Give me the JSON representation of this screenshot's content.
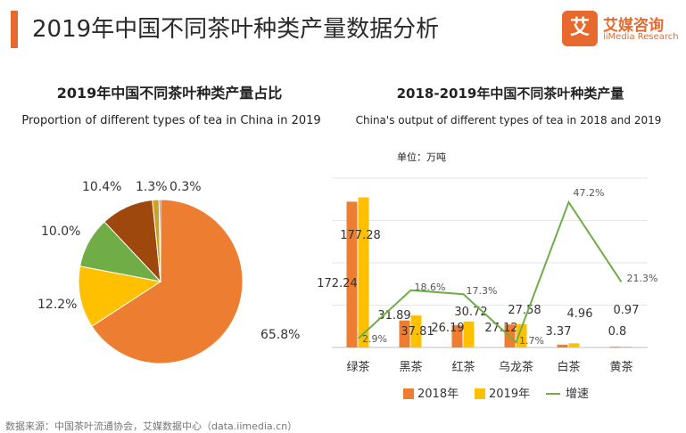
{
  "page_title": "2019年中国不同茶叶种类产量数据分析",
  "logo": {
    "mark": "艾",
    "name_cn": "艾媒咨询",
    "name_en": "iiMedia Research"
  },
  "source": "数据来源：中国茶叶流通协会，艾媒数据中心（data.iimedia.cn）",
  "colors": {
    "orange": "#ed7d31",
    "yellow": "#ffc000",
    "green": "#70ad47",
    "brown": "#9e480e",
    "tan": "#c9a227",
    "accent": "#e8692d"
  },
  "chart_data": [
    {
      "type": "pie",
      "title": "2019年中国不同茶叶种类产量占比",
      "subtitle": "Proportion of different types of tea in China in 2019",
      "slices": [
        {
          "label": "65.8%",
          "value": 65.8,
          "color": "#ed7d31"
        },
        {
          "label": "12.2%",
          "value": 12.2,
          "color": "#ffc000"
        },
        {
          "label": "10.0%",
          "value": 10.0,
          "color": "#70ad47"
        },
        {
          "label": "10.4%",
          "value": 10.4,
          "color": "#9e480e"
        },
        {
          "label": "1.3%",
          "value": 1.3,
          "color": "#c9a227"
        },
        {
          "label": "0.3%",
          "value": 0.3,
          "color": "#7f6000"
        }
      ]
    },
    {
      "type": "bar",
      "title": "2018-2019年中国不同茶叶种类产量",
      "subtitle": "China's output of different types of tea in 2018 and 2019",
      "unit": "单位：万吨",
      "categories": [
        "绿茶",
        "黑茶",
        "红茶",
        "乌龙茶",
        "白茶",
        "黄茶"
      ],
      "series": [
        {
          "name": "2018年",
          "values": [
            172.24,
            31.89,
            26.19,
            27.12,
            3.37,
            0.8
          ],
          "labels": [
            "172.24",
            "31.89",
            "26.19",
            "27.12",
            "3.37",
            "0.8"
          ],
          "color": "#ed7d31"
        },
        {
          "name": "2019年",
          "values": [
            177.28,
            37.81,
            30.72,
            27.58,
            4.96,
            0.97
          ],
          "labels": [
            "177.28",
            "37.81",
            "30.72",
            "27.58",
            "4.96",
            "0.97"
          ],
          "color": "#ffc000"
        }
      ],
      "growth": {
        "name": "增速",
        "values": [
          2.9,
          18.6,
          17.3,
          1.7,
          47.2,
          21.3
        ],
        "labels": [
          "2.9%",
          "18.6%",
          "17.3%",
          "1.7%",
          "47.2%",
          "21.3%"
        ],
        "color": "#70ad47"
      },
      "ylim": [
        0,
        200
      ],
      "growth_ylim": [
        0,
        55
      ],
      "legend": "bottom"
    }
  ]
}
